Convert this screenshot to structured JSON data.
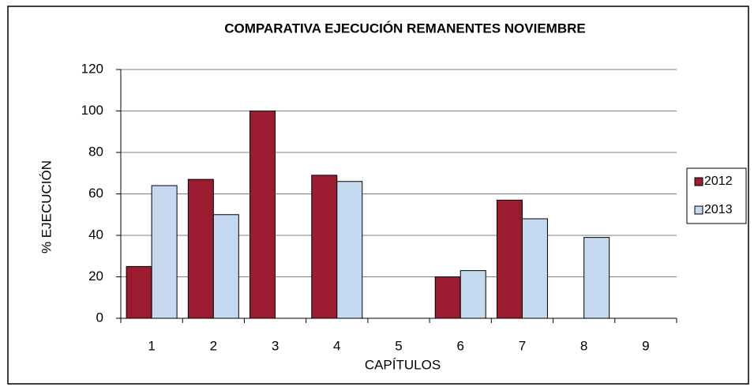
{
  "chart_data": {
    "type": "bar",
    "title": "COMPARATIVA EJECUCIÓN REMANENTES NOVIEMBRE",
    "x_label": "CAPÍTULOS",
    "y_label": "% EJECUCIÓN",
    "categories": [
      "1",
      "2",
      "3",
      "4",
      "5",
      "6",
      "7",
      "8",
      "9"
    ],
    "series": [
      {
        "name": "2012",
        "color": "#9b1b30",
        "values": [
          25,
          67,
          100,
          69,
          null,
          20,
          57,
          null,
          null
        ]
      },
      {
        "name": "2013",
        "color": "#c5d9f1",
        "values": [
          64,
          50,
          null,
          66,
          null,
          23,
          48,
          39,
          null
        ]
      }
    ],
    "ylim": [
      0,
      120
    ],
    "yticks": [
      0,
      20,
      40,
      60,
      80,
      100,
      120
    ],
    "grid": true,
    "legend": "right"
  }
}
